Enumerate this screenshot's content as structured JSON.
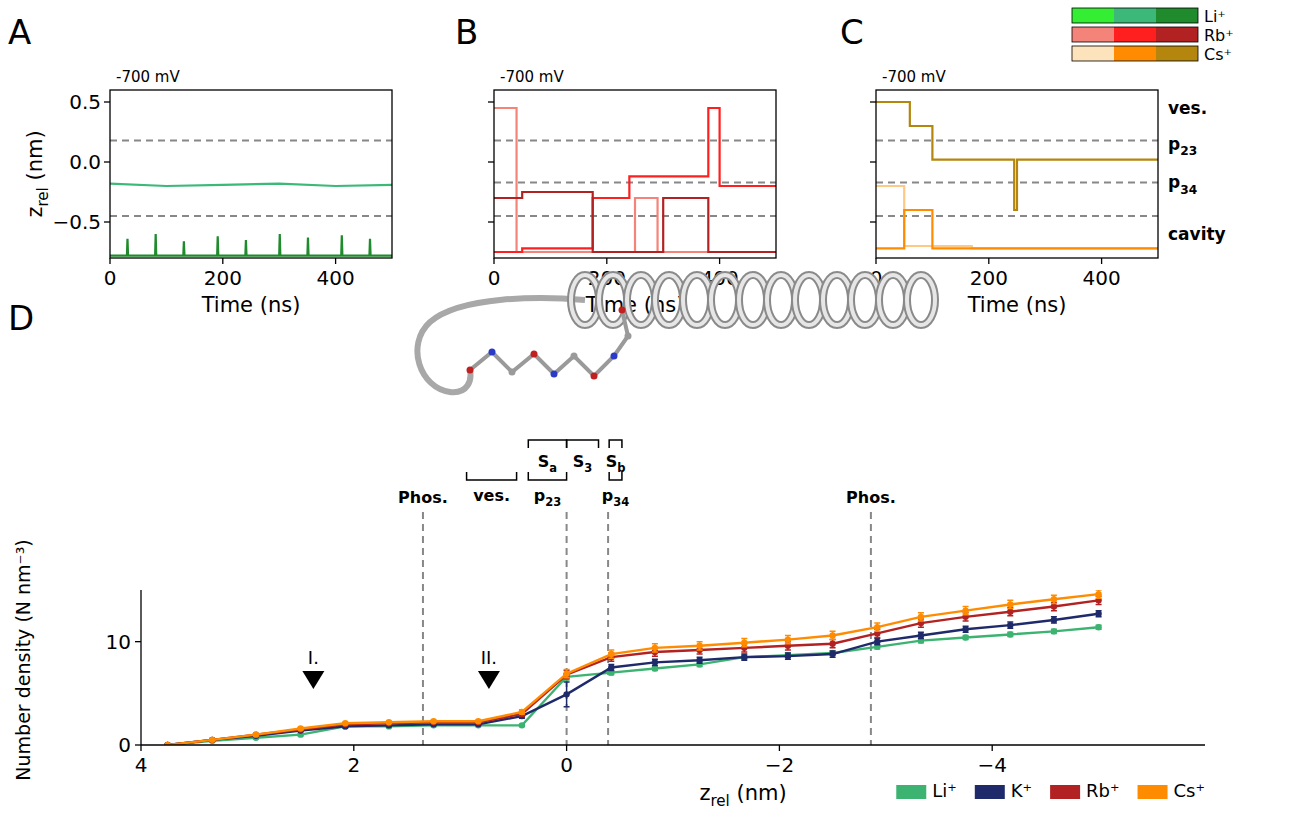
{
  "chart_data": [
    {
      "type": "line",
      "panel_label": "A",
      "title": "-700 mV",
      "xlabel": "Time (ns)",
      "ylabel": [
        "z",
        "rel",
        " (nm)"
      ],
      "xlim": [
        0,
        500
      ],
      "ylim": [
        -0.8,
        0.6
      ],
      "xticks": [
        0,
        200,
        400
      ],
      "yticks": [
        {
          "value": -0.5,
          "label": "−0.5"
        },
        {
          "value": 0,
          "label": "0.0"
        },
        0.5
      ],
      "hlines": [
        0.18,
        -0.45
      ],
      "series": [
        {
          "color": "#3cb878",
          "x": [
            0,
            100,
            200,
            300,
            400,
            500
          ],
          "values": [
            -0.18,
            -0.2,
            -0.19,
            -0.18,
            -0.2,
            -0.19
          ]
        },
        {
          "color": "#1f8b2c",
          "x": [
            0,
            30,
            31,
            32,
            80,
            81,
            82,
            130,
            131,
            132,
            190,
            191,
            192,
            240,
            241,
            242,
            300,
            301,
            302,
            350,
            351,
            352,
            410,
            411,
            412,
            460,
            461,
            462,
            500
          ],
          "values": [
            -0.78,
            -0.78,
            -0.64,
            -0.78,
            -0.78,
            -0.6,
            -0.78,
            -0.78,
            -0.66,
            -0.78,
            -0.78,
            -0.62,
            -0.78,
            -0.78,
            -0.65,
            -0.78,
            -0.78,
            -0.6,
            -0.78,
            -0.78,
            -0.63,
            -0.78,
            -0.78,
            -0.61,
            -0.78,
            -0.78,
            -0.64,
            -0.78,
            -0.78
          ]
        }
      ]
    },
    {
      "type": "line",
      "panel_label": "B",
      "title": "-700 mV",
      "xlabel": "Time (ns)",
      "tick_labels": "x",
      "xlim": [
        0,
        500
      ],
      "ylim": [
        -0.8,
        0.6
      ],
      "xticks": [
        0,
        200,
        400
      ],
      "yticks": [
        {
          "value": -0.5,
          "label": "−0.5"
        },
        {
          "value": 0,
          "label": "0.0"
        },
        0.5
      ],
      "hlines": [
        0.18,
        -0.17,
        -0.45
      ],
      "series": [
        {
          "color": "#f4837a",
          "x": [
            0,
            40,
            40,
            250,
            250,
            290,
            290,
            500
          ],
          "values": [
            0.45,
            0.45,
            -0.75,
            -0.75,
            -0.3,
            -0.3,
            -0.75,
            -0.75
          ]
        },
        {
          "color": "#ff1f1f",
          "x": [
            0,
            50,
            50,
            175,
            175,
            240,
            240,
            380,
            380,
            400,
            400,
            500
          ],
          "values": [
            -0.75,
            -0.75,
            -0.72,
            -0.72,
            -0.3,
            -0.3,
            -0.12,
            -0.12,
            0.45,
            0.45,
            -0.2,
            -0.2
          ]
        },
        {
          "color": "#b22222",
          "x": [
            0,
            50,
            50,
            175,
            175,
            300,
            300,
            380,
            380,
            500
          ],
          "values": [
            -0.3,
            -0.3,
            -0.25,
            -0.25,
            -0.75,
            -0.75,
            -0.3,
            -0.3,
            -0.75,
            -0.75
          ]
        }
      ]
    },
    {
      "type": "line",
      "panel_label": "C",
      "title": "-700 mV",
      "xlabel": "Time (ns)",
      "tick_labels": "x",
      "xlim": [
        0,
        500
      ],
      "ylim": [
        -0.8,
        0.6
      ],
      "xticks": [
        0,
        200,
        400
      ],
      "yticks": [
        {
          "value": -0.5,
          "label": "−0.5"
        },
        {
          "value": 0,
          "label": "0.0"
        },
        0.5
      ],
      "hlines": [
        0.18,
        -0.17,
        -0.45
      ],
      "series": [
        {
          "color": "#fcc987",
          "x": [
            0,
            50,
            50,
            170,
            170,
            500
          ],
          "values": [
            -0.2,
            -0.2,
            -0.7,
            -0.7,
            -0.72,
            -0.72
          ]
        },
        {
          "color": "#ff8c00",
          "x": [
            0,
            50,
            50,
            100,
            100,
            500
          ],
          "values": [
            -0.72,
            -0.72,
            -0.4,
            -0.4,
            -0.72,
            -0.72
          ]
        },
        {
          "color": "#b5860d",
          "x": [
            0,
            60,
            60,
            100,
            100,
            245,
            245,
            250,
            250,
            500
          ],
          "values": [
            0.5,
            0.5,
            0.3,
            0.3,
            0.02,
            0.02,
            -0.4,
            -0.4,
            0.02,
            0.02
          ]
        }
      ],
      "region_labels": [
        {
          "y": 0.45,
          "label": "ves."
        },
        {
          "y": 0.15,
          "label": [
            "p",
            "23"
          ]
        },
        {
          "y": -0.17,
          "label": [
            "p",
            "34"
          ]
        },
        {
          "y": -0.6,
          "label": "cavity"
        }
      ],
      "legend": "upper right",
      "legend_entries": [
        {
          "label": "Li⁺",
          "colors": [
            "#33ee33",
            "#3cb878",
            "#1f8b2c"
          ]
        },
        {
          "label": "Rb⁺",
          "colors": [
            "#f4837a",
            "#ff1f1f",
            "#b22222"
          ]
        },
        {
          "label": "Cs⁺",
          "colors": [
            "#fde3bb",
            "#ff8c00",
            "#b5860d"
          ]
        }
      ]
    },
    {
      "type": "line",
      "panel_label": "D",
      "xlabel": [
        "z",
        "rel",
        " (nm)"
      ],
      "ylabel": "Number density (N nm⁻³)",
      "xlim": [
        4,
        -6
      ],
      "ylim": [
        0,
        15
      ],
      "xticks": [
        4,
        2,
        0,
        {
          "value": -2,
          "label": "−2"
        },
        {
          "value": -4,
          "label": "−4"
        }
      ],
      "yticks": [
        0,
        10
      ],
      "marker": "circle",
      "legend": "lower right",
      "x": [
        3.75,
        3.33,
        2.92,
        2.5,
        2.08,
        1.67,
        1.25,
        0.83,
        0.42,
        0,
        -0.42,
        -0.83,
        -1.25,
        -1.67,
        -2.08,
        -2.5,
        -2.92,
        -3.33,
        -3.75,
        -4.17,
        -4.58,
        -5.0
      ],
      "series": [
        {
          "name": "Li⁺",
          "color": "#3cb371",
          "values": [
            0,
            0.4,
            0.7,
            1.0,
            1.8,
            1.8,
            1.9,
            1.9,
            1.9,
            6.6,
            7.0,
            7.4,
            7.8,
            8.5,
            8.7,
            8.9,
            9.5,
            10.1,
            10.4,
            10.7,
            11.0,
            11.4
          ],
          "errors": [
            0,
            0.1,
            0.1,
            0.1,
            0.1,
            0.1,
            0.1,
            0.1,
            0.1,
            0.3,
            0.2,
            0.2,
            0.2,
            0.2,
            0.2,
            0.2,
            0.2,
            0.2,
            0.2,
            0.2,
            0.2,
            0.2
          ]
        },
        {
          "name": "K⁺",
          "color": "#1f2a6b",
          "values": [
            0,
            0.5,
            0.9,
            1.4,
            1.8,
            1.9,
            2.0,
            2.0,
            2.8,
            4.9,
            7.5,
            8.0,
            8.2,
            8.5,
            8.6,
            8.8,
            10.0,
            10.6,
            11.2,
            11.6,
            12.1,
            12.7
          ],
          "errors": [
            0,
            0.1,
            0.1,
            0.1,
            0.1,
            0.1,
            0.1,
            0.1,
            0.2,
            1.2,
            0.3,
            0.3,
            0.3,
            0.3,
            0.3,
            0.3,
            0.3,
            0.3,
            0.3,
            0.3,
            0.3,
            0.3
          ]
        },
        {
          "name": "Rb⁺",
          "color": "#b22222",
          "values": [
            0,
            0.5,
            1.0,
            1.5,
            2.0,
            2.1,
            2.2,
            2.2,
            3.0,
            6.8,
            8.5,
            9.0,
            9.2,
            9.4,
            9.6,
            9.8,
            10.8,
            11.8,
            12.4,
            12.9,
            13.4,
            14.0
          ],
          "errors": [
            0,
            0.1,
            0.1,
            0.1,
            0.1,
            0.1,
            0.1,
            0.1,
            0.2,
            0.4,
            0.4,
            0.4,
            0.4,
            0.4,
            0.4,
            0.4,
            0.4,
            0.4,
            0.4,
            0.4,
            0.4,
            0.4
          ]
        },
        {
          "name": "Cs⁺",
          "color": "#ff8c00",
          "values": [
            0,
            0.5,
            1.0,
            1.6,
            2.1,
            2.2,
            2.3,
            2.3,
            3.2,
            6.9,
            8.8,
            9.4,
            9.6,
            9.9,
            10.2,
            10.6,
            11.4,
            12.4,
            13.0,
            13.6,
            14.1,
            14.6
          ],
          "errors": [
            0,
            0.1,
            0.1,
            0.1,
            0.1,
            0.1,
            0.1,
            0.1,
            0.2,
            0.4,
            0.4,
            0.4,
            0.4,
            0.4,
            0.4,
            0.4,
            0.4,
            0.4,
            0.4,
            0.4,
            0.4,
            0.4
          ]
        }
      ],
      "vlines": [
        {
          "x": 1.35,
          "label": "Phos."
        },
        {
          "x": 0
        },
        {
          "x": -0.39
        },
        {
          "x": -2.86,
          "label": "Phos."
        }
      ],
      "upper_brackets": [
        {
          "label": [
            "S",
            "a"
          ],
          "from": 0.36,
          "to": 0
        },
        {
          "label": [
            "S",
            "3"
          ],
          "from": 0,
          "to": -0.3
        },
        {
          "label": [
            "S",
            "b"
          ],
          "from": -0.4,
          "to": -0.52
        }
      ],
      "lower_brackets": [
        {
          "label": "ves.",
          "from": 0.94,
          "to": 0.47
        },
        {
          "label": [
            "p",
            "23"
          ],
          "from": 0.36,
          "to": 0
        },
        {
          "label": [
            "p",
            "34"
          ],
          "from": -0.4,
          "to": -0.52
        }
      ],
      "annotations": [
        {
          "x": 2.38,
          "y": 6.3,
          "label": "I."
        },
        {
          "x": 0.73,
          "y": 6.3,
          "label": "II."
        }
      ]
    }
  ]
}
